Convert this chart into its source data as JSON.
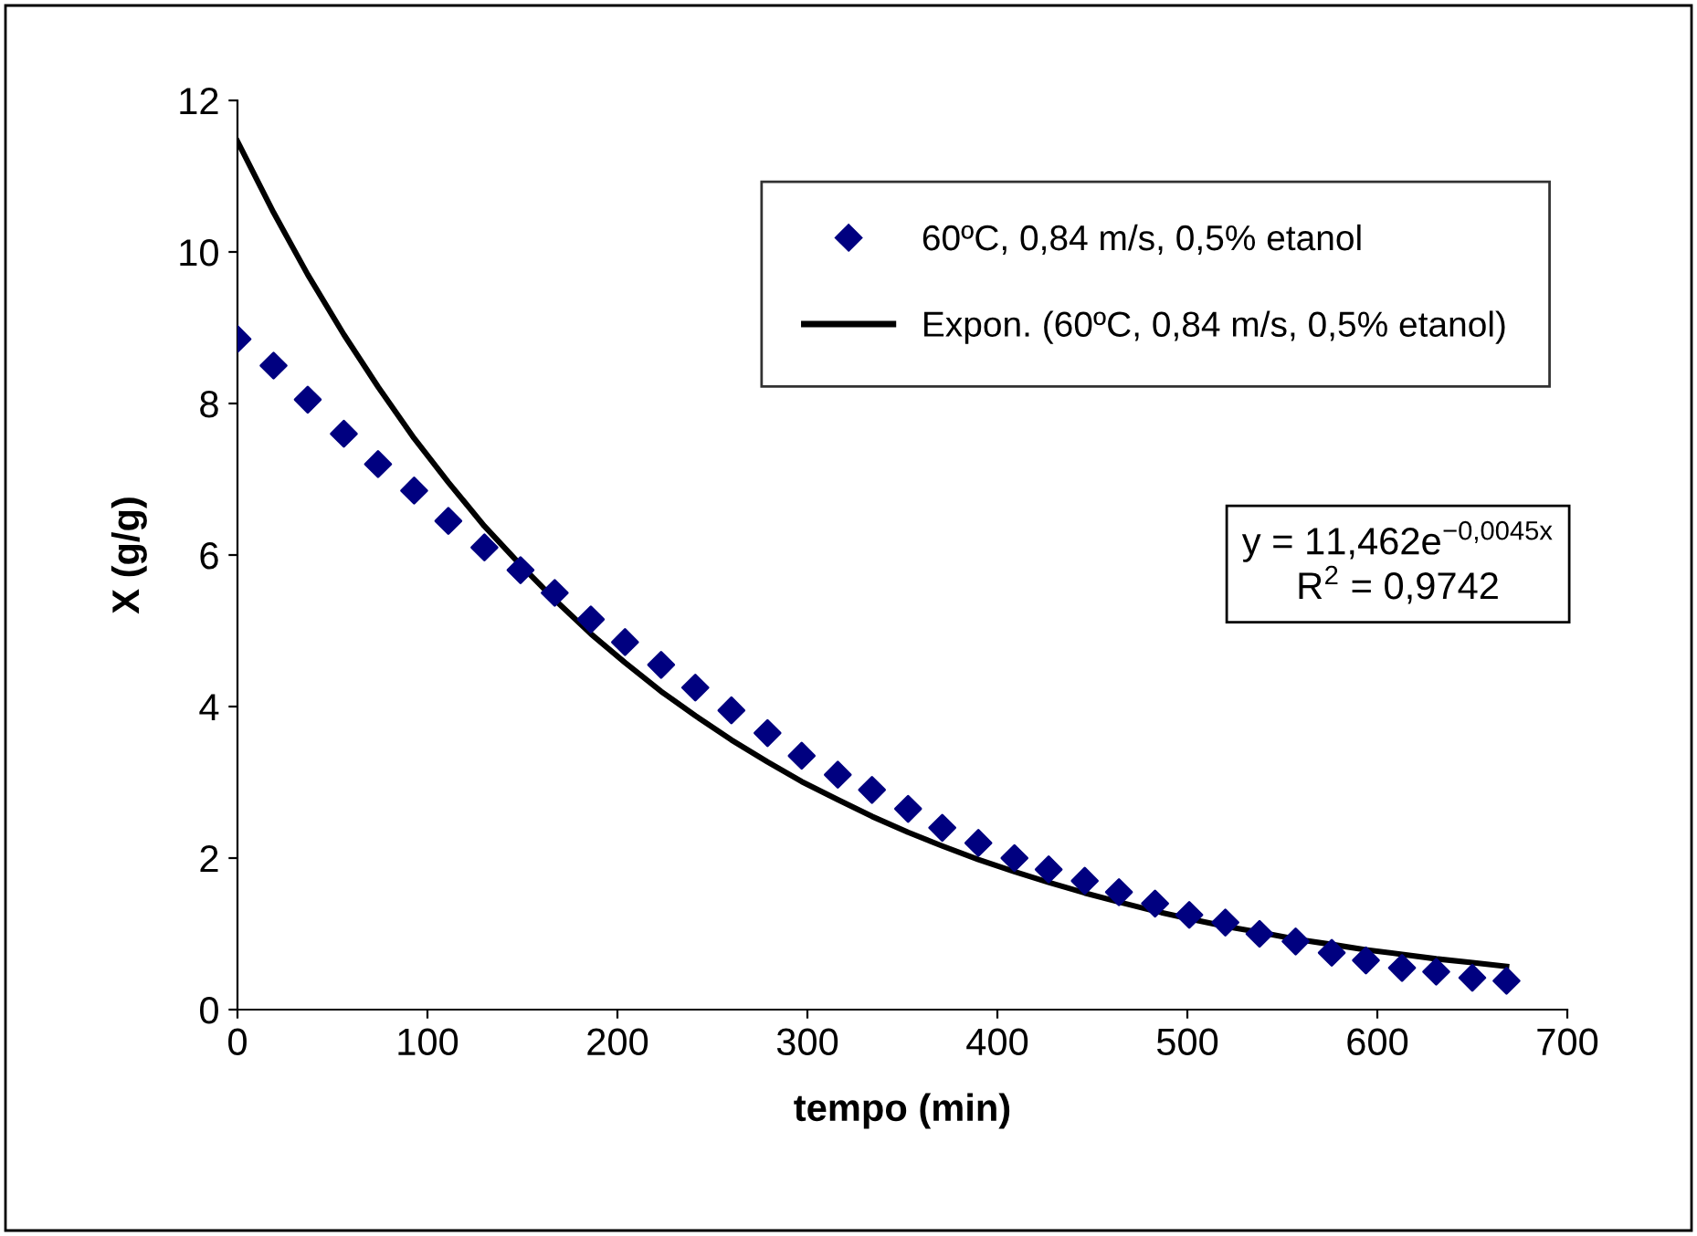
{
  "chart_data": {
    "type": "scatter",
    "xlabel": "tempo (min)",
    "ylabel": "X (g/g)",
    "xlim": [
      0,
      700
    ],
    "xticks": [
      0,
      100,
      200,
      300,
      400,
      500,
      600,
      700
    ],
    "ylim": [
      0,
      12
    ],
    "yticks": [
      0,
      2,
      4,
      6,
      8,
      10,
      12
    ],
    "grid": false,
    "legend": "top right",
    "marker": "diamond",
    "x": [
      0,
      19,
      37,
      56,
      74,
      93,
      111,
      130,
      149,
      167,
      186,
      204,
      223,
      241,
      260,
      279,
      297,
      316,
      334,
      353,
      371,
      390,
      409,
      427,
      446,
      464,
      483,
      501,
      520,
      538,
      557,
      576,
      594,
      613,
      631,
      650,
      668
    ],
    "series": [
      {
        "name": "60ºC, 0,84 m/s, 0,5% etanol",
        "color": "#000080",
        "values": [
          8.85,
          8.5,
          8.05,
          7.6,
          7.2,
          6.85,
          6.45,
          6.1,
          5.8,
          5.5,
          5.15,
          4.85,
          4.55,
          4.25,
          3.95,
          3.65,
          3.35,
          3.1,
          2.9,
          2.65,
          2.4,
          2.2,
          2.0,
          1.85,
          1.7,
          1.55,
          1.4,
          1.25,
          1.15,
          1.0,
          0.9,
          0.75,
          0.65,
          0.55,
          0.5,
          0.42,
          0.38
        ]
      },
      {
        "name": "Expon. (60ºC, 0,84 m/s, 0,5% etanol)",
        "type": "line",
        "color": "#000000",
        "line_style": "solid",
        "marker": "none",
        "values": [
          11.46,
          10.52,
          9.7,
          8.91,
          8.22,
          7.54,
          6.96,
          6.38,
          5.87,
          5.41,
          4.96,
          4.58,
          4.2,
          3.88,
          3.56,
          3.27,
          3.01,
          2.77,
          2.55,
          2.34,
          2.16,
          1.98,
          1.82,
          1.68,
          1.54,
          1.42,
          1.3,
          1.2,
          1.1,
          1.02,
          0.93,
          0.86,
          0.79,
          0.73,
          0.67,
          0.62,
          0.57
        ]
      }
    ],
    "annotations": [
      "y = 11,462e$^{−0,0045x}$\nR$^{2}$ = 0,9742"
    ]
  }
}
